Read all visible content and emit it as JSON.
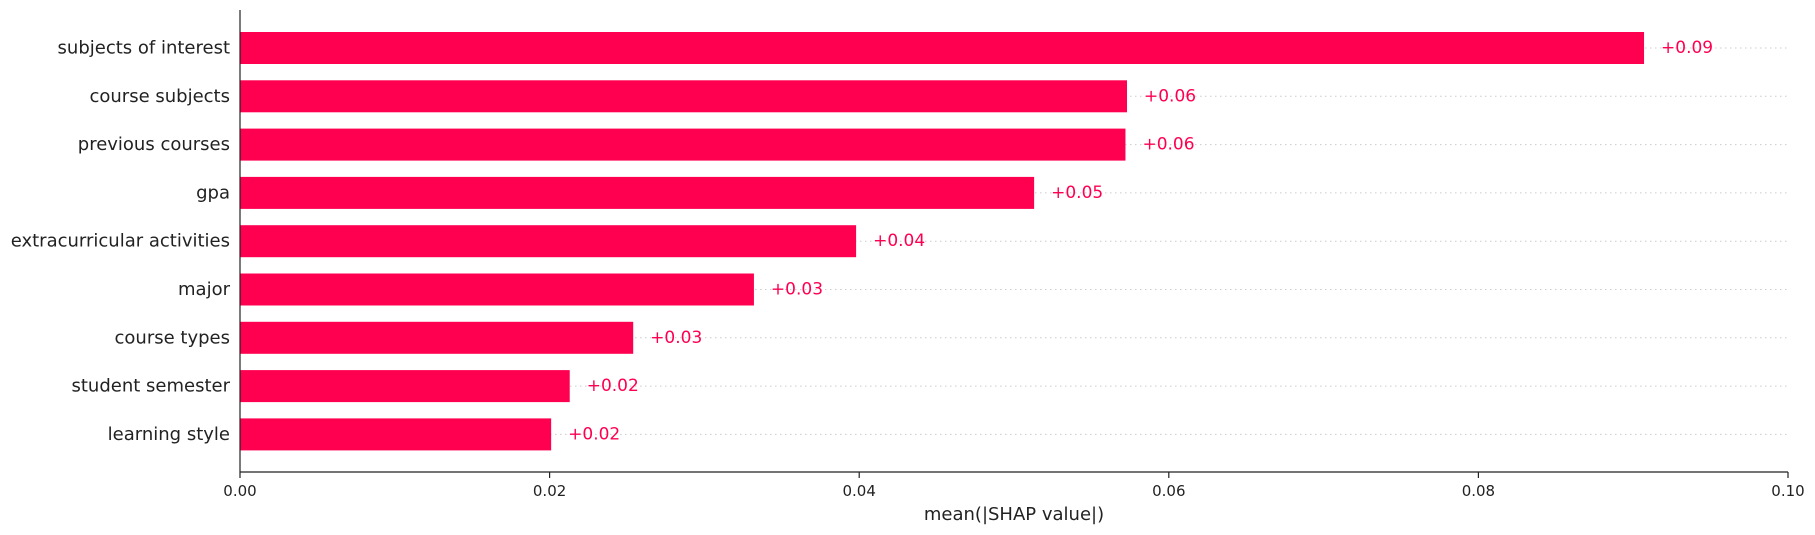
{
  "chart_data": {
    "type": "bar",
    "orientation": "horizontal",
    "categories": [
      "subjects of interest",
      "course subjects",
      "previous courses",
      "gpa",
      "extracurricular activities",
      "major",
      "course types",
      "student semester",
      "learning style"
    ],
    "values": [
      0.0907,
      0.0573,
      0.0572,
      0.0513,
      0.0398,
      0.0332,
      0.0254,
      0.0213,
      0.0201
    ],
    "value_labels": [
      "+0.09",
      "+0.06",
      "+0.06",
      "+0.05",
      "+0.04",
      "+0.03",
      "+0.03",
      "+0.02",
      "+0.02"
    ],
    "xlabel": "mean(|SHAP value|)",
    "xlim": [
      0.0,
      0.1
    ],
    "xticks": [
      0.0,
      0.02,
      0.04,
      0.06,
      0.08,
      0.1
    ],
    "xtick_labels": [
      "0.00",
      "0.02",
      "0.04",
      "0.06",
      "0.08",
      "0.10"
    ],
    "grid": "dotted horizontal guide lines per bar",
    "bar_color": "#ff0051",
    "label_color": "#ff0051"
  }
}
